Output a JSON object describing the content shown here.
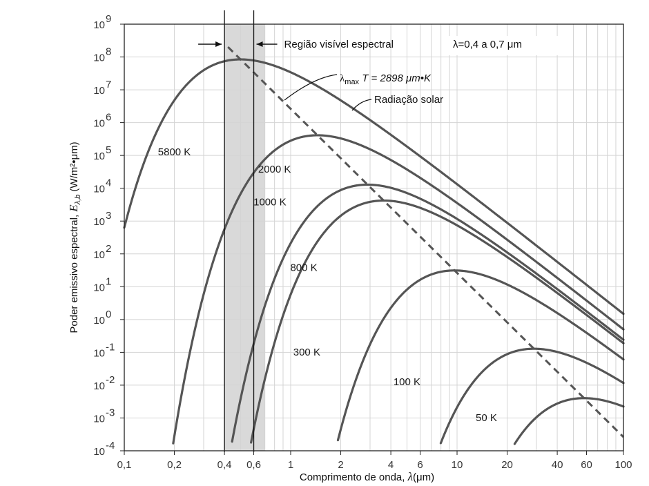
{
  "chart_data": {
    "type": "line",
    "title": "",
    "xlabel_text": "Comprimento de onda,",
    "xlabel_symbol": "λ",
    "xlabel_unit": "(μm)",
    "ylabel_text": "Poder emissivo espectral,",
    "ylabel_symbol": "E",
    "ylabel_sub": "λ,b",
    "ylabel_unit": "(W/m²•μm)",
    "xscale": "log",
    "yscale": "log",
    "xlim": [
      0.1,
      100
    ],
    "ylim": [
      0.0001,
      1000000000
    ],
    "x_ticks": [
      {
        "v": 0.1,
        "label": "0,1"
      },
      {
        "v": 0.2,
        "label": "0,2"
      },
      {
        "v": 0.4,
        "label": "0,4"
      },
      {
        "v": 0.6,
        "label": "0,6"
      },
      {
        "v": 1,
        "label": "1"
      },
      {
        "v": 2,
        "label": "2"
      },
      {
        "v": 4,
        "label": "4"
      },
      {
        "v": 6,
        "label": "6"
      },
      {
        "v": 10,
        "label": "10"
      },
      {
        "v": 20,
        "label": "20"
      },
      {
        "v": 40,
        "label": "40"
      },
      {
        "v": 60,
        "label": "60"
      },
      {
        "v": 100,
        "label": "100"
      }
    ],
    "y_ticks": [
      {
        "exp": 9,
        "label": "10",
        "sup": "9"
      },
      {
        "exp": 8,
        "label": "10",
        "sup": "8"
      },
      {
        "exp": 7,
        "label": "10",
        "sup": "7"
      },
      {
        "exp": 6,
        "label": "10",
        "sup": "6"
      },
      {
        "exp": 5,
        "label": "10",
        "sup": "5"
      },
      {
        "exp": 4,
        "label": "10",
        "sup": "4"
      },
      {
        "exp": 3,
        "label": "10",
        "sup": "3"
      },
      {
        "exp": 2,
        "label": "10",
        "sup": "2"
      },
      {
        "exp": 1,
        "label": "10",
        "sup": "1"
      },
      {
        "exp": 0,
        "label": "10",
        "sup": "0"
      },
      {
        "exp": -1,
        "label": "10",
        "sup": "-1"
      },
      {
        "exp": -2,
        "label": "10",
        "sup": "-2"
      },
      {
        "exp": -3,
        "label": "10",
        "sup": "-3"
      },
      {
        "exp": -4,
        "label": "10",
        "sup": "-4"
      }
    ],
    "grid": true,
    "series": [
      {
        "name": "5800 K",
        "T": 5800
      },
      {
        "name": "2000 K",
        "T": 2000
      },
      {
        "name": "1000 K",
        "T": 1000
      },
      {
        "name": "800 K",
        "T": 800
      },
      {
        "name": "300 K",
        "T": 300
      },
      {
        "name": "100 K",
        "T": 100
      },
      {
        "name": "50 K",
        "T": 50
      }
    ],
    "series_labels": [
      {
        "text": "5800 K",
        "x": 0.2,
        "y": 100000
      },
      {
        "text": "2000 K",
        "x": 0.8,
        "y": 30000
      },
      {
        "text": "1000 K",
        "x": 0.75,
        "y": 3000
      },
      {
        "text": "800 K",
        "x": 1.2,
        "y": 30
      },
      {
        "text": "300 K",
        "x": 1.25,
        "y": 0.08
      },
      {
        "text": "100 K",
        "x": 5,
        "y": 0.01
      },
      {
        "text": "50 K",
        "x": 15,
        "y": 0.0008
      }
    ],
    "max_locus": {
      "constant": 2898,
      "dashed": true
    },
    "visible_region": {
      "from": 0.4,
      "to": 0.7
    },
    "annotations": {
      "visible_region_label": "Região visível espectral",
      "visible_region_range": "λ=0,4 a 0,7 μm",
      "lambda_max_label": "λ",
      "lambda_max_sub": "max",
      "lambda_max_rest": " T = 2898 μm•K",
      "solar_label": "Radiação solar"
    },
    "colors": {
      "curve": "#555555",
      "band": "#d9d9d9",
      "grid": "#d4d4d4",
      "axis": "#222222"
    }
  }
}
